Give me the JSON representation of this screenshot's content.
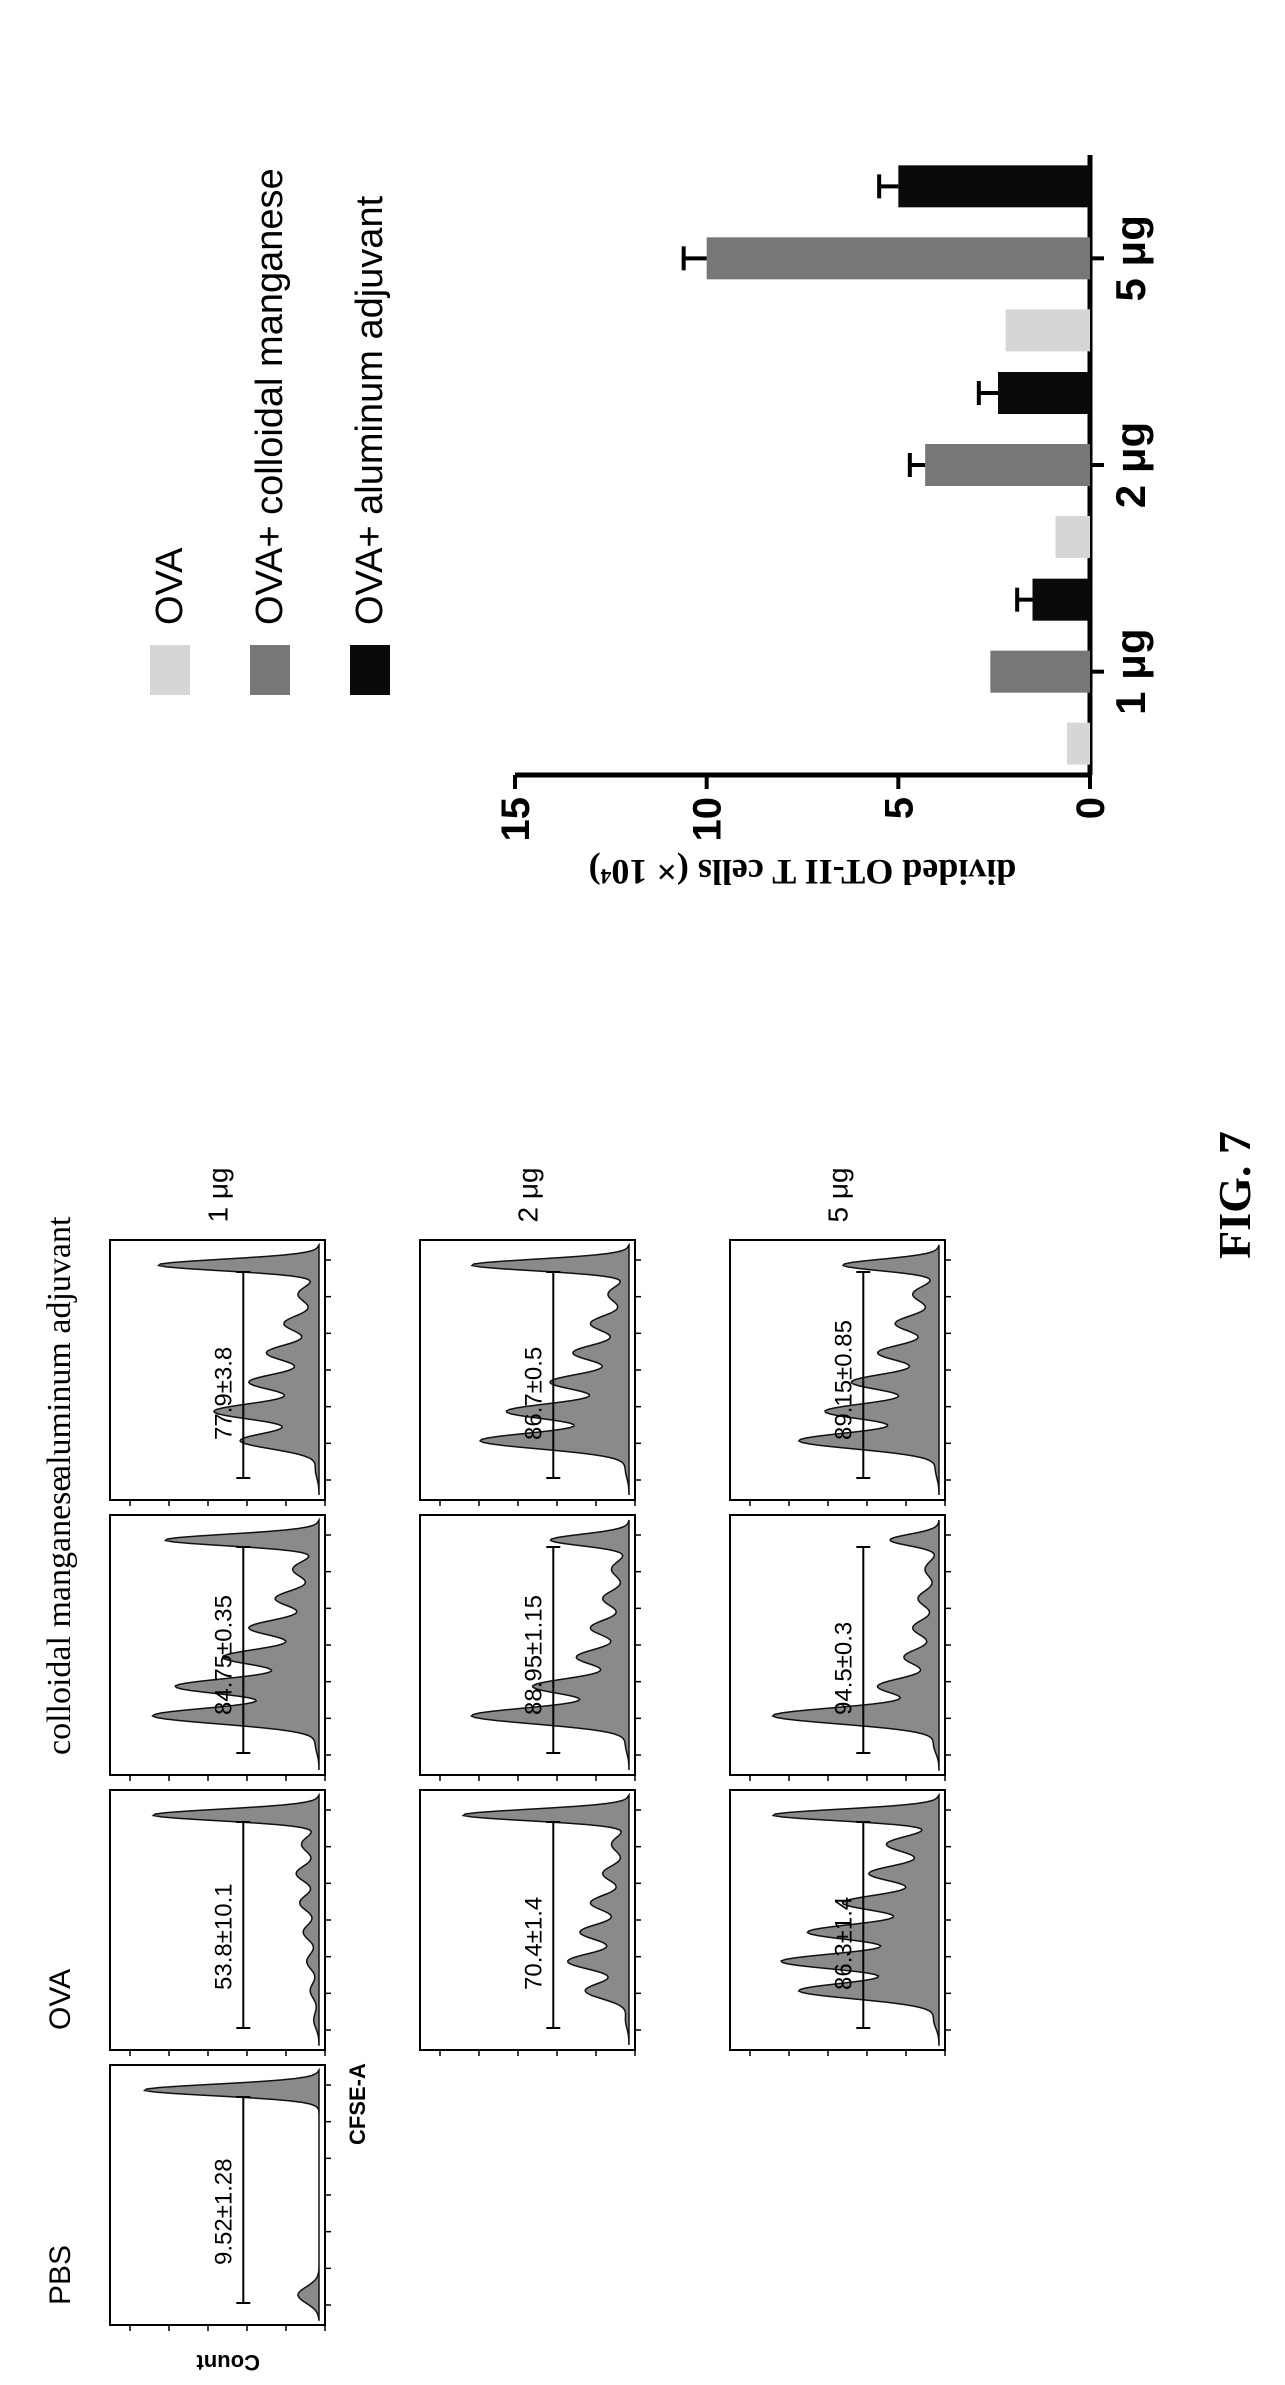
{
  "figure_label": "FIG. 7",
  "flow": {
    "columns": [
      {
        "label": "PBS",
        "font": "sans"
      },
      {
        "label": "OVA",
        "font": "sans"
      },
      {
        "label": "colloidal manganese",
        "font": "serif"
      },
      {
        "label": "aluminum adjuvant",
        "font": "serif"
      }
    ],
    "rows": [
      "1 μg",
      "2 μg",
      "5 μg"
    ],
    "ylabel": "Count",
    "xlabel": "CFSE-A",
    "panels": [
      {
        "col": 0,
        "row": 0,
        "value": "9.52±1.28",
        "peaks": [
          0.12,
          0.0,
          0.0,
          0.0,
          0.0,
          0.0,
          0.0,
          1.0
        ]
      },
      {
        "col": 1,
        "row": 0,
        "value": "53.8±10.1",
        "peaks": [
          0.03,
          0.05,
          0.07,
          0.09,
          0.11,
          0.13,
          0.1,
          0.95
        ]
      },
      {
        "col": 2,
        "row": 0,
        "value": "84.75±0.35",
        "peaks": [
          0.02,
          0.95,
          0.82,
          0.55,
          0.4,
          0.25,
          0.15,
          0.88
        ]
      },
      {
        "col": 3,
        "row": 0,
        "value": "77.9±3.8",
        "peaks": [
          0.02,
          0.45,
          0.6,
          0.4,
          0.3,
          0.2,
          0.12,
          0.92
        ]
      },
      {
        "col": 1,
        "row": 1,
        "value": "70.4±1.4",
        "peaks": [
          0.02,
          0.25,
          0.35,
          0.28,
          0.22,
          0.15,
          0.1,
          0.95
        ]
      },
      {
        "col": 2,
        "row": 1,
        "value": "88.95±1.15",
        "peaks": [
          0.02,
          0.9,
          0.55,
          0.3,
          0.22,
          0.15,
          0.1,
          0.45
        ]
      },
      {
        "col": 3,
        "row": 1,
        "value": "86.7±0.5",
        "peaks": [
          0.02,
          0.85,
          0.7,
          0.45,
          0.32,
          0.22,
          0.12,
          0.9
        ]
      },
      {
        "col": 1,
        "row": 2,
        "value": "86.3±1.4",
        "peaks": [
          0.03,
          0.8,
          0.9,
          0.75,
          0.55,
          0.4,
          0.3,
          0.95
        ]
      },
      {
        "col": 2,
        "row": 2,
        "value": "94.5±0.3",
        "peaks": [
          0.03,
          0.95,
          0.35,
          0.2,
          0.15,
          0.12,
          0.08,
          0.28
        ]
      },
      {
        "col": 3,
        "row": 2,
        "value": "89.15±0.85",
        "peaks": [
          0.02,
          0.8,
          0.65,
          0.5,
          0.35,
          0.25,
          0.15,
          0.55
        ]
      }
    ]
  },
  "chart_data": {
    "type": "bar",
    "categories": [
      "1 μg",
      "2 μg",
      "5 μg"
    ],
    "ylabel": "divided OT-II T cells (× 10⁴)",
    "ylim": [
      0,
      15
    ],
    "yticks": [
      0,
      5,
      10,
      15
    ],
    "legend_position": "top-left",
    "series": [
      {
        "name": "OVA",
        "color": "#d6d6d6",
        "values": [
          0.6,
          0.9,
          2.2
        ],
        "errors": [
          0,
          0,
          0
        ]
      },
      {
        "name": "OVA+ colloidal manganese",
        "color": "#777777",
        "values": [
          2.6,
          4.3,
          10.0
        ],
        "errors": [
          0,
          0.4,
          0.6
        ]
      },
      {
        "name": "OVA+ aluminum adjuvant",
        "color": "#0a0a0a",
        "values": [
          1.5,
          2.4,
          5.0
        ],
        "errors": [
          0.4,
          0.5,
          0.5
        ]
      }
    ]
  }
}
